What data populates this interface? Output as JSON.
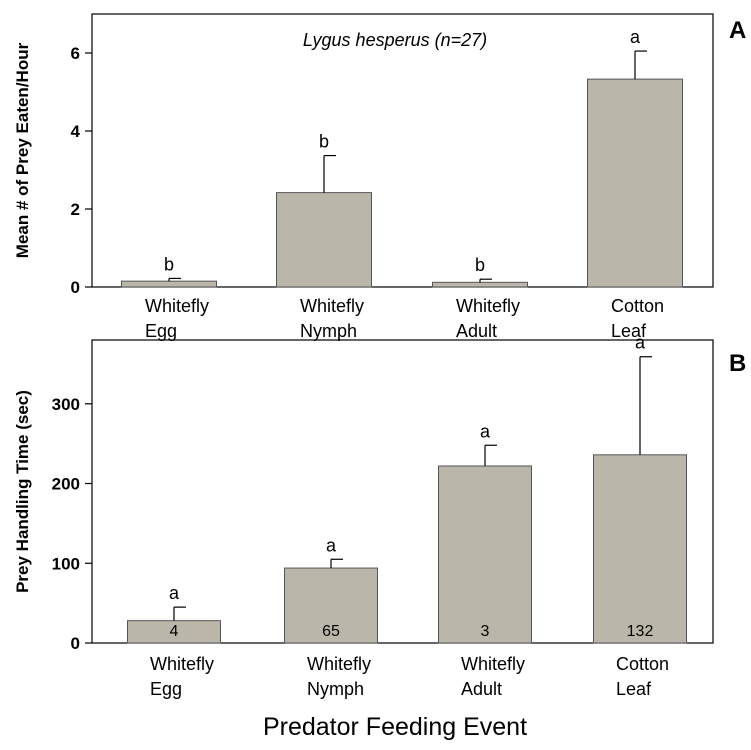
{
  "x_title": "Predator Feeding Event",
  "colors": {
    "bar_fill": "#bab7aa",
    "axis": "#000000"
  },
  "chart_data": [
    {
      "type": "bar",
      "panel": "A",
      "annotation": "Lygus hesperus (n=27)",
      "ylabel": "Mean # of Prey Eaten/Hour",
      "ylim": [
        0,
        7
      ],
      "yticks": [
        0,
        2,
        4,
        6
      ],
      "categories": [
        [
          "Whitefly",
          "Egg"
        ],
        [
          "Whitefly",
          "Nymph"
        ],
        [
          "Whitefly",
          "Adult"
        ],
        [
          "Cotton",
          "Leaf"
        ]
      ],
      "values": [
        0.15,
        2.42,
        0.12,
        5.33
      ],
      "errors": [
        0.07,
        0.95,
        0.08,
        0.72
      ],
      "significance": [
        "b",
        "b",
        "b",
        "a"
      ]
    },
    {
      "type": "bar",
      "panel": "B",
      "ylabel": "Prey Handling Time (sec)",
      "ylim": [
        0,
        380
      ],
      "yticks": [
        0,
        100,
        200,
        300
      ],
      "categories": [
        [
          "Whitefly",
          "Egg"
        ],
        [
          "Whitefly",
          "Nymph"
        ],
        [
          "Whitefly",
          "Adult"
        ],
        [
          "Cotton",
          "Leaf"
        ]
      ],
      "values": [
        28,
        94,
        222,
        236
      ],
      "errors": [
        17,
        11,
        26,
        123
      ],
      "significance": [
        "a",
        "a",
        "a",
        "a"
      ],
      "n_labels": [
        "4",
        "65",
        "3",
        "132"
      ]
    }
  ]
}
